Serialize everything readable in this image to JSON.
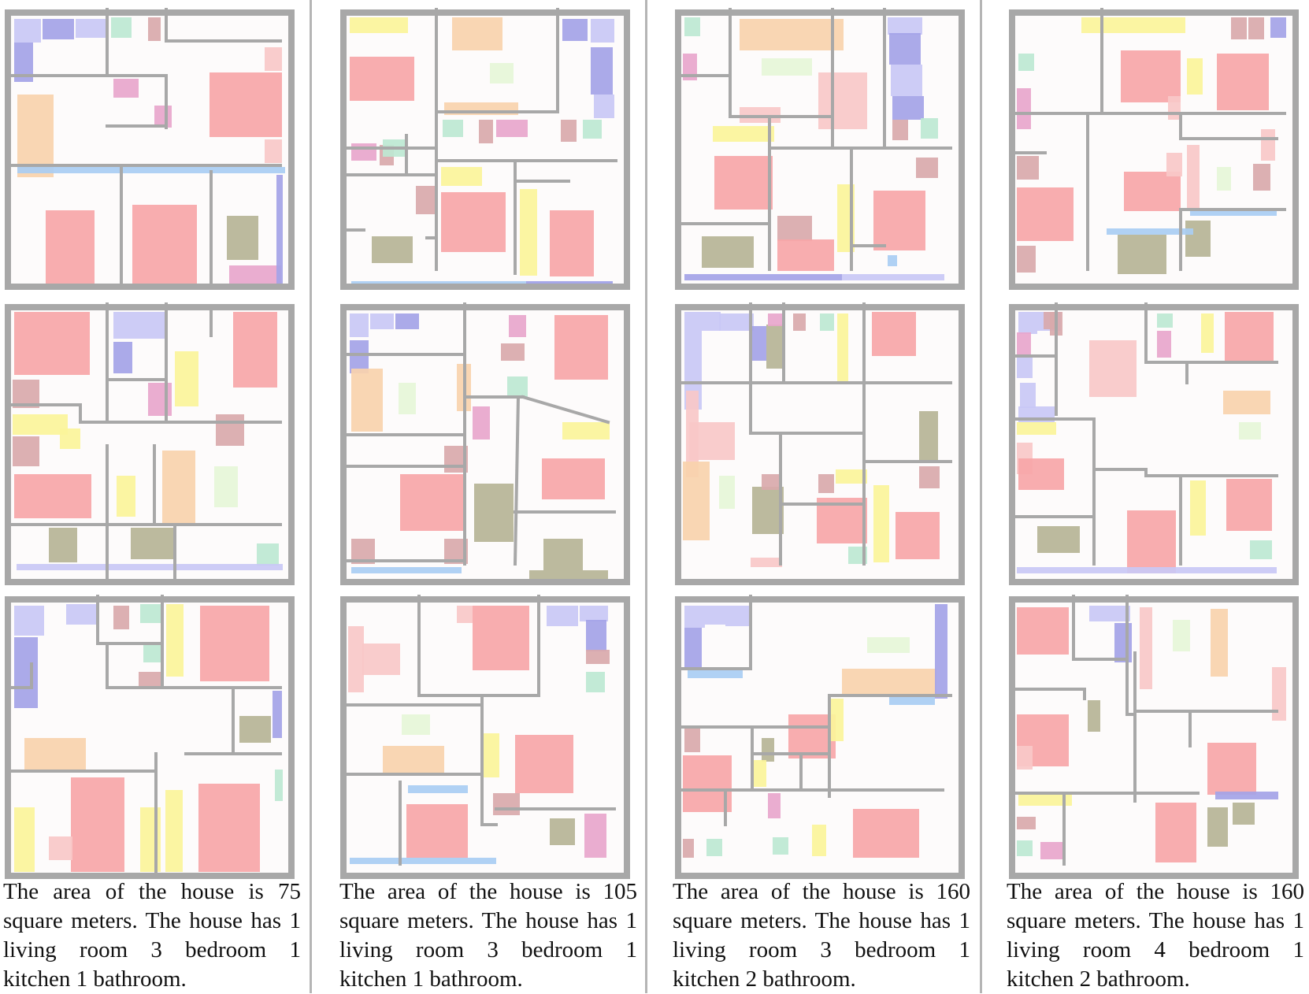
{
  "figure": {
    "columns": [
      {
        "caption": "The area of the house is 75 square meters. The house has 1 living room 3 bedroom 1 kitchen 1 bathroom.",
        "area_m2": 75,
        "living_rooms": 1,
        "bedrooms": 3,
        "kitchens": 1,
        "bathrooms": 1,
        "plans": [
          "plan-1",
          "plan-2",
          "plan-3"
        ]
      },
      {
        "caption": "The area of the house is 105 square meters. The house has 1 living room 3 bedroom 1 kitchen 1 bathroom.",
        "area_m2": 105,
        "living_rooms": 1,
        "bedrooms": 3,
        "kitchens": 1,
        "bathrooms": 1,
        "plans": [
          "plan-1",
          "plan-2",
          "plan-3"
        ]
      },
      {
        "caption": "The area of the house is 160 square meters. The house has 1 living room 3 bedroom 1 kitchen 2 bathroom.",
        "area_m2": 160,
        "living_rooms": 1,
        "bedrooms": 3,
        "kitchens": 1,
        "bathrooms": 2,
        "plans": [
          "plan-1",
          "plan-2",
          "plan-3"
        ]
      },
      {
        "caption": "The area of the house is 160 square meters. The house has 1 living room 4 bedroom 1 kitchen 2 bathroom.",
        "area_m2": 160,
        "living_rooms": 1,
        "bedrooms": 4,
        "kitchens": 1,
        "bathrooms": 2,
        "plans": [
          "plan-1",
          "plan-2",
          "plan-3"
        ]
      }
    ],
    "colors": {
      "wall": "#a8a8a8",
      "floor": "#fdfbfb",
      "bed": "#f7a6a8",
      "bed_light": "#f9c8c8",
      "sofa": "#f9d3ac",
      "desk": "#fbf49a",
      "table_olive": "#b6b496",
      "cabinet_mauve": "#d9a9ab",
      "toilet_pink": "#e8a6cc",
      "sink_green": "#bde8d3",
      "rug_green": "#e6f6d8",
      "window_blue": "#a9cdf3",
      "closet_lavender": "#c9c8f5",
      "closet_blue": "#a4a3e7",
      "divider": "#b5b5b5"
    }
  }
}
